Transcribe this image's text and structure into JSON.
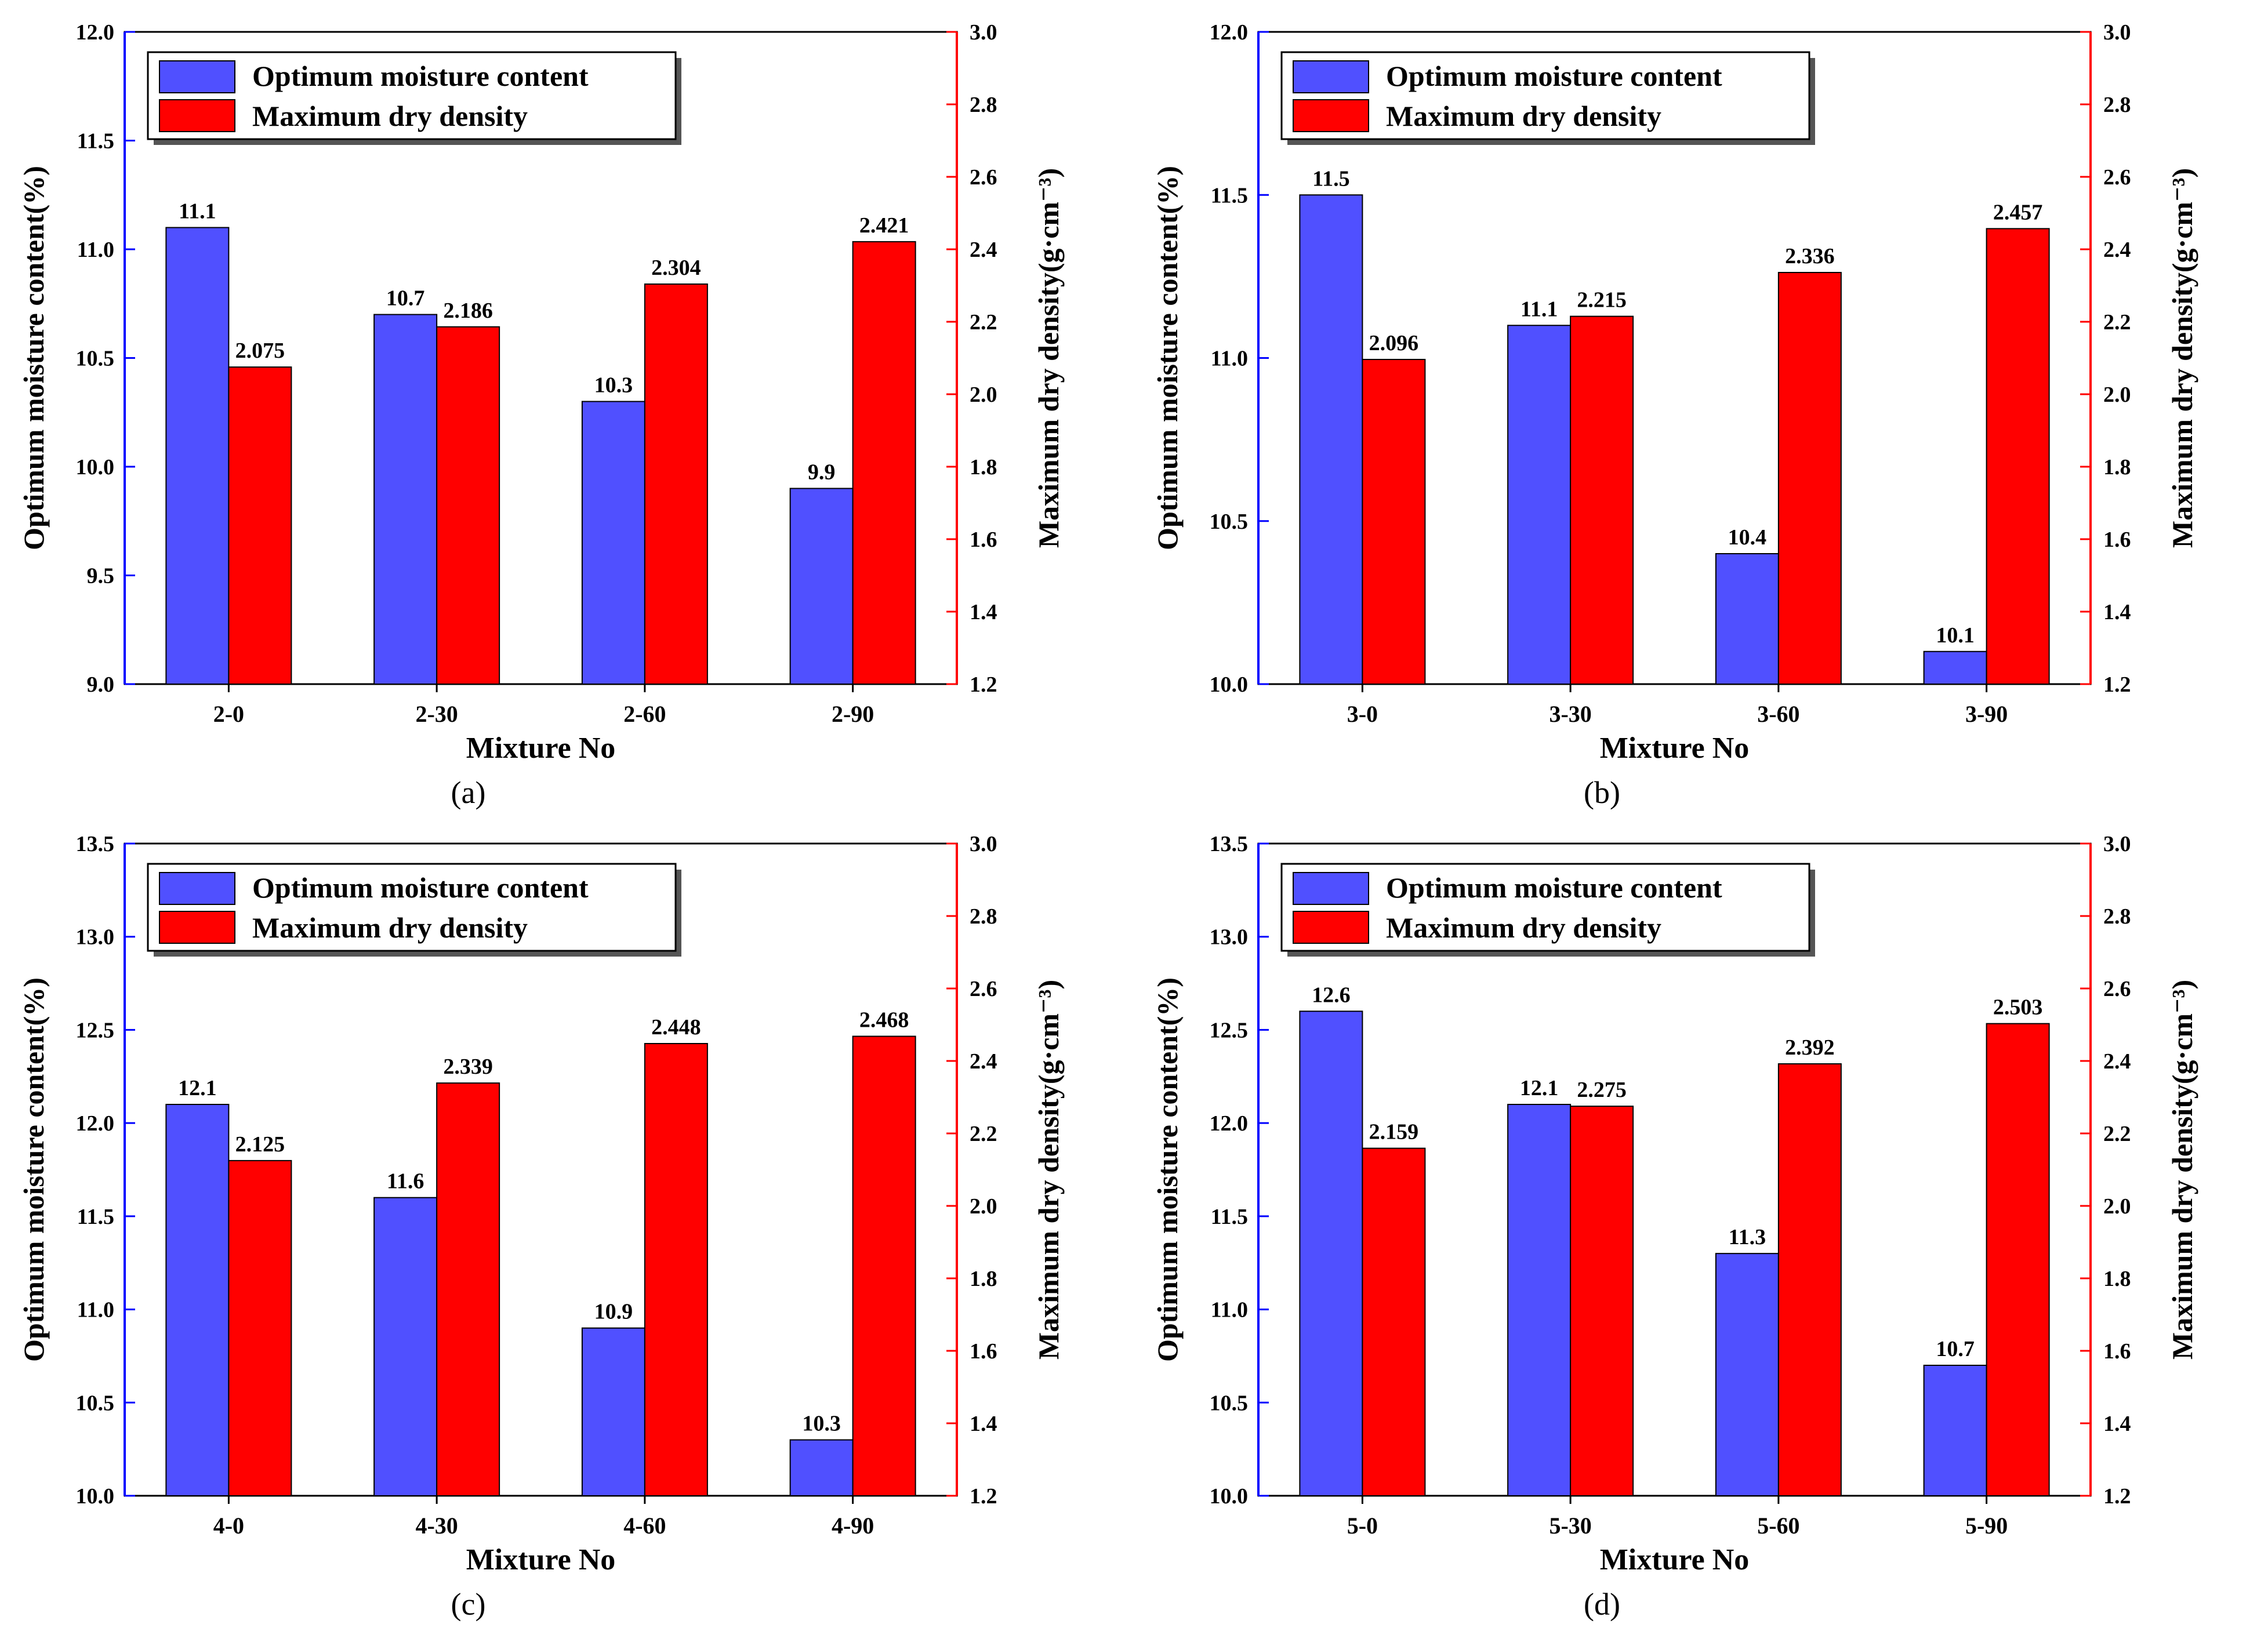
{
  "colors": {
    "moisture": "#5050ff",
    "density": "#ff0000",
    "left_axis": "#0000ff",
    "right_axis": "#ff0000",
    "text": "#000000"
  },
  "chart_data": [
    {
      "type": "bar",
      "panel_label": "(a)",
      "xlabel": "Mixture No",
      "ylabel_left": "Optimum moisture content(%)",
      "ylabel_right": "Maximum dry density(g·cm⁻³)",
      "categories": [
        "2-0",
        "2-30",
        "2-60",
        "2-90"
      ],
      "ylim_left": [
        9.0,
        12.0
      ],
      "yticks_left": [
        "9.0",
        "9.5",
        "10.0",
        "10.5",
        "11.0",
        "11.5",
        "12.0"
      ],
      "ylim_right": [
        1.2,
        3.0
      ],
      "yticks_right": [
        "1.2",
        "1.4",
        "1.6",
        "1.8",
        "2.0",
        "2.2",
        "2.4",
        "2.6",
        "2.8",
        "3.0"
      ],
      "legend_position": "top-left",
      "series": [
        {
          "name": "Optimum moisture content",
          "axis": "left",
          "values": [
            11.1,
            10.7,
            10.3,
            9.9
          ],
          "labels": [
            "11.1",
            "10.7",
            "10.3",
            "9.9"
          ]
        },
        {
          "name": "Maximum dry density",
          "axis": "right",
          "values": [
            2.075,
            2.186,
            2.304,
            2.421
          ],
          "labels": [
            "2.075",
            "2.186",
            "2.304",
            "2.421"
          ]
        }
      ]
    },
    {
      "type": "bar",
      "panel_label": "(b)",
      "xlabel": "Mixture No",
      "ylabel_left": "Optimum moisture content(%)",
      "ylabel_right": "Maximum dry density(g·cm⁻³)",
      "categories": [
        "3-0",
        "3-30",
        "3-60",
        "3-90"
      ],
      "ylim_left": [
        10.0,
        12.0
      ],
      "yticks_left": [
        "10.0",
        "10.5",
        "11.0",
        "11.5",
        "12.0"
      ],
      "ylim_right": [
        1.2,
        3.0
      ],
      "yticks_right": [
        "1.2",
        "1.4",
        "1.6",
        "1.8",
        "2.0",
        "2.2",
        "2.4",
        "2.6",
        "2.8",
        "3.0"
      ],
      "legend_position": "top-left",
      "series": [
        {
          "name": "Optimum moisture content",
          "axis": "left",
          "values": [
            11.5,
            11.1,
            10.4,
            10.1
          ],
          "labels": [
            "11.5",
            "11.1",
            "10.4",
            "10.1"
          ]
        },
        {
          "name": "Maximum dry density",
          "axis": "right",
          "values": [
            2.096,
            2.215,
            2.336,
            2.457
          ],
          "labels": [
            "2.096",
            "2.215",
            "2.336",
            "2.457"
          ]
        }
      ]
    },
    {
      "type": "bar",
      "panel_label": "(c)",
      "xlabel": "Mixture No",
      "ylabel_left": "Optimum moisture content(%)",
      "ylabel_right": "Maximum dry density(g·cm⁻³)",
      "categories": [
        "4-0",
        "4-30",
        "4-60",
        "4-90"
      ],
      "ylim_left": [
        10.0,
        13.5
      ],
      "yticks_left": [
        "10.0",
        "10.5",
        "11.0",
        "11.5",
        "12.0",
        "12.5",
        "13.0",
        "13.5"
      ],
      "ylim_right": [
        1.2,
        3.0
      ],
      "yticks_right": [
        "1.2",
        "1.4",
        "1.6",
        "1.8",
        "2.0",
        "2.2",
        "2.4",
        "2.6",
        "2.8",
        "3.0"
      ],
      "legend_position": "top-left",
      "series": [
        {
          "name": "Optimum moisture content",
          "axis": "left",
          "values": [
            12.1,
            11.6,
            10.9,
            10.3
          ],
          "labels": [
            "12.1",
            "11.6",
            "10.9",
            "10.3"
          ]
        },
        {
          "name": "Maximum dry density",
          "axis": "right",
          "values": [
            2.125,
            2.339,
            2.448,
            2.468
          ],
          "labels": [
            "2.125",
            "2.339",
            "2.448",
            "2.468"
          ]
        }
      ]
    },
    {
      "type": "bar",
      "panel_label": "(d)",
      "xlabel": "Mixture No",
      "ylabel_left": "Optimum moisture content(%)",
      "ylabel_right": "Maximum dry density(g·cm⁻³)",
      "categories": [
        "5-0",
        "5-30",
        "5-60",
        "5-90"
      ],
      "ylim_left": [
        10.0,
        13.5
      ],
      "yticks_left": [
        "10.0",
        "10.5",
        "11.0",
        "11.5",
        "12.0",
        "12.5",
        "13.0",
        "13.5"
      ],
      "ylim_right": [
        1.2,
        3.0
      ],
      "yticks_right": [
        "1.2",
        "1.4",
        "1.6",
        "1.8",
        "2.0",
        "2.2",
        "2.4",
        "2.6",
        "2.8",
        "3.0"
      ],
      "legend_position": "top-left",
      "series": [
        {
          "name": "Optimum moisture content",
          "axis": "left",
          "values": [
            12.6,
            12.1,
            11.3,
            10.7
          ],
          "labels": [
            "12.6",
            "12.1",
            "11.3",
            "10.7"
          ]
        },
        {
          "name": "Maximum dry density",
          "axis": "right",
          "values": [
            2.159,
            2.275,
            2.392,
            2.503
          ],
          "labels": [
            "2.159",
            "2.275",
            "2.392",
            "2.503"
          ]
        }
      ]
    }
  ]
}
